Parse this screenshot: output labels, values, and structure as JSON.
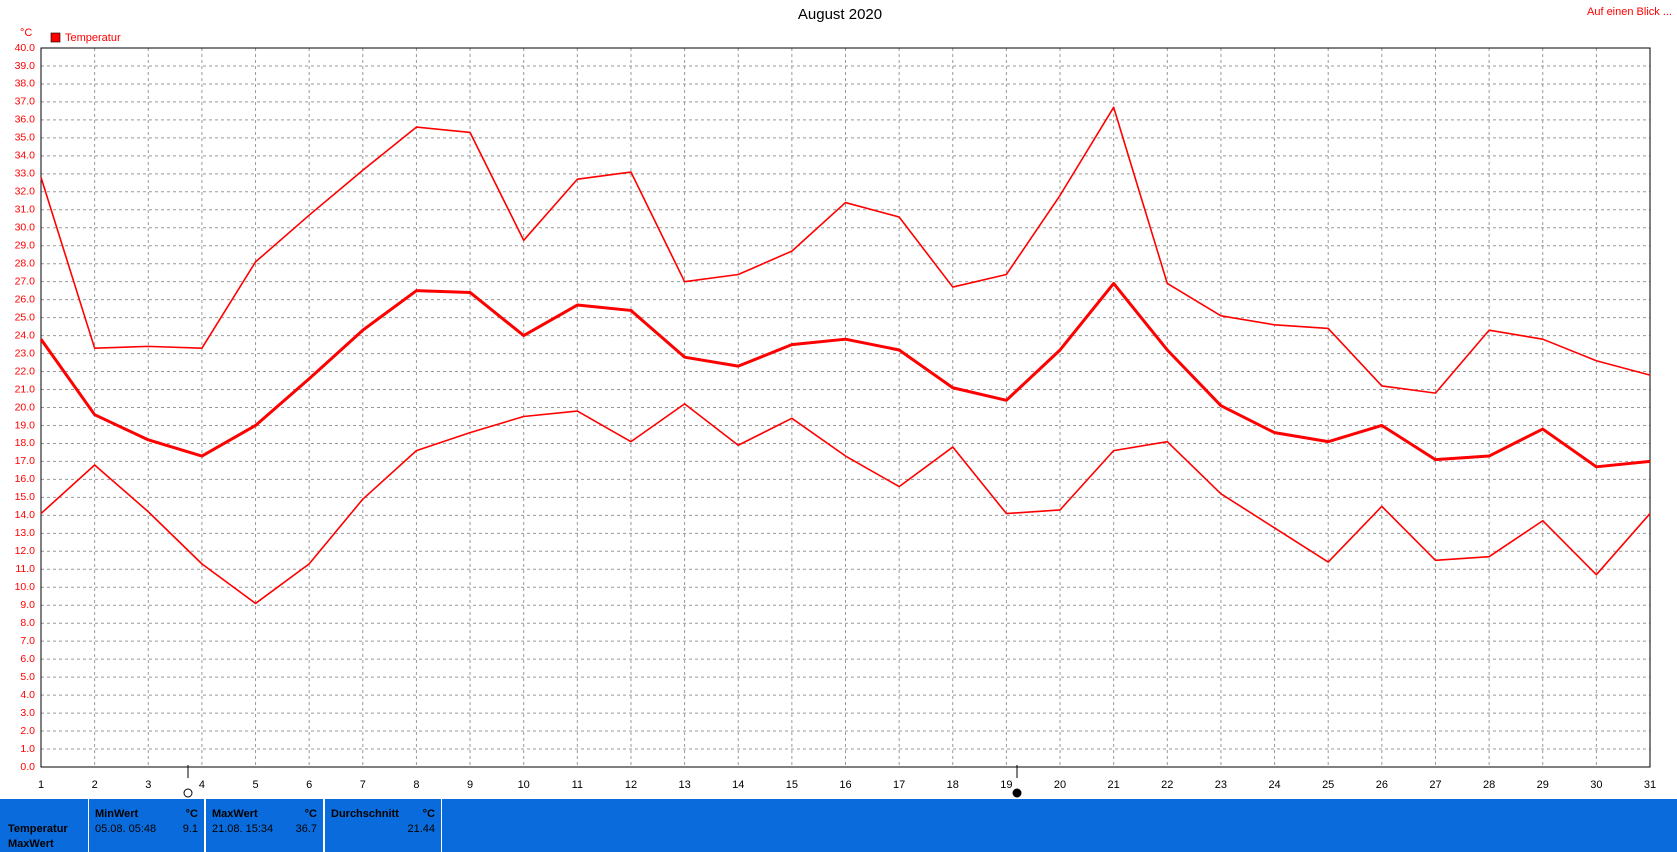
{
  "chart_data": {
    "type": "line",
    "title": "August 2020",
    "link": "Auf einen Blick ...",
    "y_unit": "°C",
    "legend": "Temperatur",
    "color": "#ff0000",
    "grid": true,
    "x": [
      1,
      2,
      3,
      4,
      5,
      6,
      7,
      8,
      9,
      10,
      11,
      12,
      13,
      14,
      15,
      16,
      17,
      18,
      19,
      20,
      21,
      22,
      23,
      24,
      25,
      26,
      27,
      28,
      29,
      30,
      31
    ],
    "xlim": [
      1,
      31
    ],
    "xticks": [
      1,
      2,
      3,
      4,
      5,
      6,
      7,
      8,
      9,
      10,
      11,
      12,
      13,
      14,
      15,
      16,
      17,
      18,
      19,
      20,
      21,
      22,
      23,
      24,
      25,
      26,
      27,
      28,
      29,
      30,
      31
    ],
    "ylim": [
      0,
      40
    ],
    "yticks": [
      {
        "value": 0,
        "label": "0.0"
      },
      {
        "value": 1,
        "label": "1.0"
      },
      {
        "value": 2,
        "label": "2.0"
      },
      {
        "value": 3,
        "label": "3.0"
      },
      {
        "value": 4,
        "label": "4.0"
      },
      {
        "value": 5,
        "label": "5.0"
      },
      {
        "value": 6,
        "label": "6.0"
      },
      {
        "value": 7,
        "label": "7.0"
      },
      {
        "value": 8,
        "label": "8.0"
      },
      {
        "value": 9,
        "label": "9.0"
      },
      {
        "value": 10,
        "label": "10.0"
      },
      {
        "value": 11,
        "label": "11.0"
      },
      {
        "value": 12,
        "label": "12.0"
      },
      {
        "value": 13,
        "label": "13.0"
      },
      {
        "value": 14,
        "label": "14.0"
      },
      {
        "value": 15,
        "label": "15.0"
      },
      {
        "value": 16,
        "label": "16.0"
      },
      {
        "value": 17,
        "label": "17.0"
      },
      {
        "value": 18,
        "label": "18.0"
      },
      {
        "value": 19,
        "label": "19.0"
      },
      {
        "value": 20,
        "label": "20.0"
      },
      {
        "value": 21,
        "label": "21.0"
      },
      {
        "value": 22,
        "label": "22.0"
      },
      {
        "value": 23,
        "label": "23.0"
      },
      {
        "value": 24,
        "label": "24.0"
      },
      {
        "value": 25,
        "label": "25.0"
      },
      {
        "value": 26,
        "label": "26.0"
      },
      {
        "value": 27,
        "label": "27.0"
      },
      {
        "value": 28,
        "label": "28.0"
      },
      {
        "value": 29,
        "label": "29.0"
      },
      {
        "value": 30,
        "label": "30.0"
      },
      {
        "value": 31,
        "label": "31.0"
      },
      {
        "value": 32,
        "label": "32.0"
      },
      {
        "value": 33,
        "label": "33.0"
      },
      {
        "value": 34,
        "label": "34.0"
      },
      {
        "value": 35,
        "label": "35.0"
      },
      {
        "value": 36,
        "label": "36.0"
      },
      {
        "value": 37,
        "label": "37.0"
      },
      {
        "value": 38,
        "label": "38.0"
      },
      {
        "value": 39,
        "label": "39.0"
      },
      {
        "value": 40,
        "label": "40.0"
      }
    ],
    "series": [
      {
        "color": "#ff0000",
        "width": 1.6,
        "values": [
          32.8,
          23.3,
          23.4,
          23.3,
          28.1,
          30.7,
          33.2,
          35.6,
          35.3,
          29.3,
          32.7,
          33.1,
          27.0,
          27.4,
          28.7,
          31.4,
          30.6,
          26.7,
          27.4,
          31.8,
          36.7,
          26.9,
          25.1,
          24.6,
          24.4,
          21.2,
          20.8,
          24.3,
          23.8,
          22.6,
          21.8
        ]
      },
      {
        "color": "#ff0000",
        "width": 3,
        "values": [
          23.8,
          19.6,
          18.2,
          17.3,
          19.0,
          21.6,
          24.3,
          26.5,
          26.4,
          24.0,
          25.7,
          25.4,
          22.8,
          22.3,
          23.5,
          23.8,
          23.2,
          21.1,
          20.4,
          23.2,
          26.9,
          23.2,
          20.1,
          18.6,
          18.1,
          19.0,
          17.1,
          17.3,
          18.8,
          16.7,
          17.0
        ]
      },
      {
        "color": "#ff0000",
        "width": 1.6,
        "values": [
          14.1,
          16.8,
          14.2,
          11.3,
          9.1,
          11.3,
          14.9,
          17.6,
          18.6,
          19.5,
          19.8,
          18.1,
          20.2,
          17.9,
          19.4,
          17.3,
          15.6,
          17.8,
          14.1,
          14.3,
          17.6,
          18.1,
          15.2,
          13.3,
          11.4,
          14.5,
          11.5,
          11.7,
          13.7,
          10.7,
          14.1
        ]
      }
    ]
  },
  "summary": {
    "row_labels": [
      "Temperatur",
      "MaxWert"
    ],
    "columns": [
      {
        "header": "MinWert",
        "unit": "°C",
        "time": "05.08.  05:48",
        "value": "9.1"
      },
      {
        "header": "MaxWert",
        "unit": "°C",
        "time": "21.08.  15:34",
        "value": "36.7"
      },
      {
        "header": "Durchschnitt",
        "unit": "°C",
        "time": "",
        "value": "21.44"
      }
    ]
  }
}
